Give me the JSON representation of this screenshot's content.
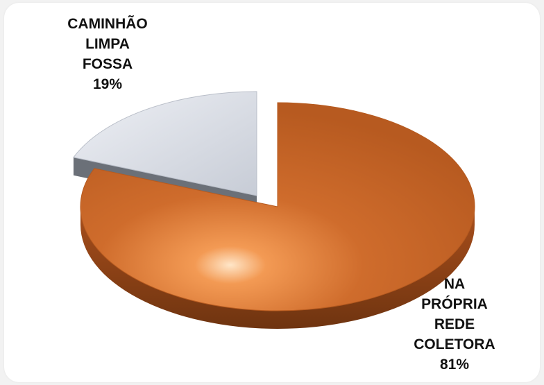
{
  "chart_data": {
    "type": "pie",
    "slices": [
      {
        "category_lines": [
          "CAMINHÃO",
          "LIMPA",
          "FOSSA"
        ],
        "value": 19,
        "value_label": "19%",
        "color": "#d6dae3"
      },
      {
        "category_lines": [
          "NA",
          "PRÓPRIA",
          "REDE",
          "COLETORA"
        ],
        "value": 81,
        "value_label": "81%",
        "color": "#c9682a"
      }
    ]
  }
}
